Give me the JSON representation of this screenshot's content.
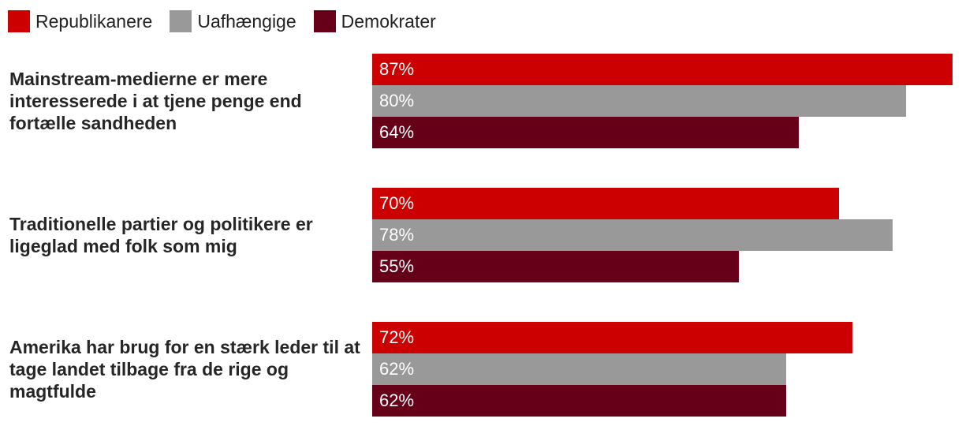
{
  "chart_data": {
    "type": "bar",
    "orientation": "horizontal",
    "title": "",
    "xlabel": "",
    "ylabel": "",
    "xlim": [
      0,
      87
    ],
    "legend_position": "top-left",
    "grid": false,
    "series": [
      {
        "name": "Republikanere",
        "color": "#cc0000",
        "values": [
          87,
          70,
          72
        ]
      },
      {
        "name": "Uafhængige",
        "color": "#999999",
        "values": [
          80,
          78,
          62
        ]
      },
      {
        "name": "Demokrater",
        "color": "#660019",
        "values": [
          64,
          55,
          62
        ]
      }
    ],
    "categories": [
      "Mainstream-medierne er mere interesserede i at tjene penge end fortælle sandheden",
      "Traditionelle partier og politikere er ligeglad med folk som mig",
      "Amerika har brug for en stærk leder til at tage landet tilbage fra de rige og magtfulde"
    ],
    "value_format": "{v}%"
  }
}
